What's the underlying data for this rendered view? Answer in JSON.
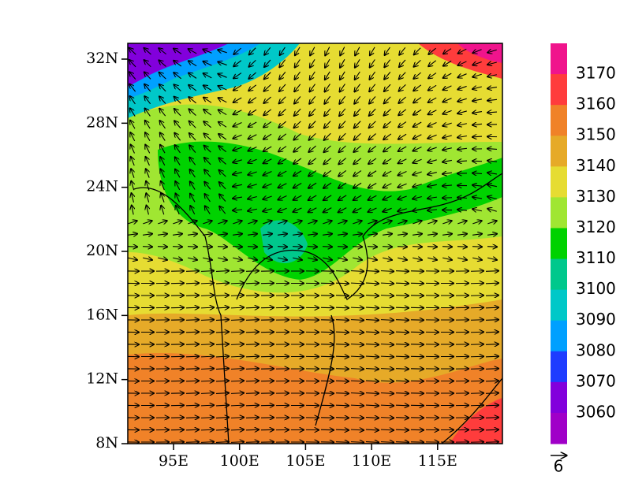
{
  "map": {
    "lat_labels": [
      "32N",
      "28N",
      "24N",
      "20N",
      "16N",
      "12N",
      "8N"
    ],
    "lon_labels": [
      "95E",
      "100E",
      "105E",
      "110E",
      "115E"
    ],
    "colorbar": {
      "levels": [
        3170,
        3160,
        3150,
        3140,
        3130,
        3120,
        3110,
        3100,
        3090,
        3080,
        3070,
        3060
      ],
      "colors": [
        "#f0148c",
        "#ff3c3c",
        "#f08228",
        "#e6aa28",
        "#e6dc32",
        "#a0e632",
        "#00d200",
        "#00c88c",
        "#00c8c8",
        "#00a0ff",
        "#1e3cff",
        "#8200dc",
        "#a000c8"
      ]
    },
    "reference_vector": {
      "label": "6"
    }
  }
}
